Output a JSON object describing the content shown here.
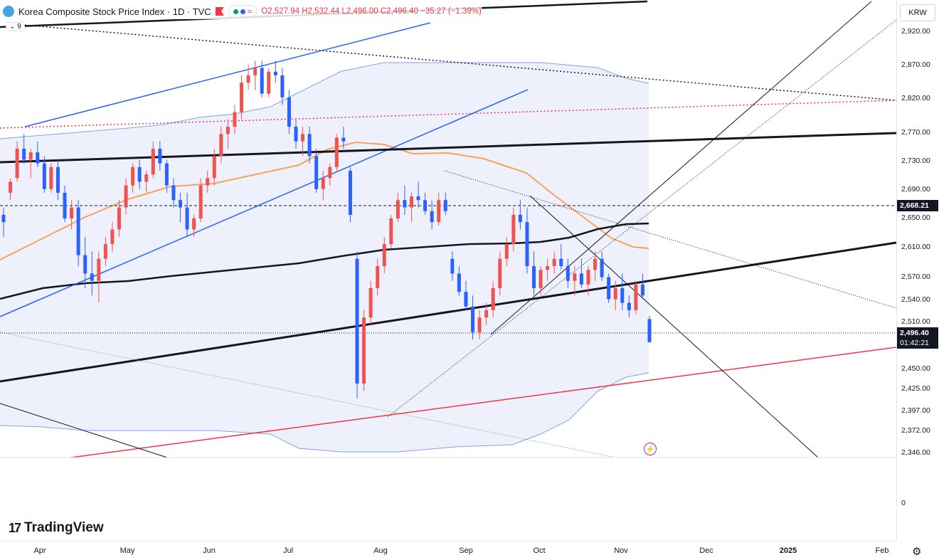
{
  "legend": {
    "title": "Korea Composite Stock Price Index · 1D · TVC",
    "ohlc_o": "O2,527.94",
    "ohlc_h": "H2,532.44",
    "ohlc_l": "L2,496.00",
    "ohlc_c": "C2,496.40",
    "change": "−35.27 (−1.39%)",
    "pill_text": "≈"
  },
  "indicator_toggle": "⌄ 9",
  "currency": "KRW",
  "price_tags": {
    "level": "2,668.21",
    "last": "2,496.40",
    "countdown": "01:42:21"
  },
  "brand": {
    "mark": "17",
    "name": "TradingView"
  },
  "icons": {
    "flash": "flash-icon",
    "settings": "gear-icon",
    "logo": "globe-icon"
  },
  "colors": {
    "up": "#ef5350",
    "down": "#2962ff",
    "ma_orange": "#f7a35c",
    "band": "#7ea6e0"
  },
  "chart_data": {
    "type": "candlestick",
    "y_tick_labels": [
      "2,920.00",
      "2,870.00",
      "2,820.00",
      "2,770.00",
      "2,730.00",
      "2,690.00",
      "2,650.00",
      "2,610.00",
      "2,570.00",
      "2,540.00",
      "2,510.00",
      "2,450.00",
      "2,425.00",
      "2,397.00",
      "2,372.00",
      "2,346.00"
    ],
    "lower_pane_tick": "0",
    "x_tick_labels": [
      "Apr",
      "May",
      "Jun",
      "Jul",
      "Aug",
      "Sep",
      "Oct",
      "Nov",
      "Dec",
      "2025",
      "Feb"
    ],
    "last_price": 2496.4,
    "horizontal_level": 2668.21,
    "candles": [
      [
        2670,
        2680,
        2640,
        2660
      ],
      [
        2700,
        2720,
        2690,
        2715
      ],
      [
        2720,
        2770,
        2715,
        2760
      ],
      [
        2760,
        2780,
        2740,
        2745
      ],
      [
        2745,
        2760,
        2720,
        2755
      ],
      [
        2755,
        2770,
        2735,
        2740
      ],
      [
        2740,
        2750,
        2700,
        2705
      ],
      [
        2705,
        2740,
        2700,
        2735
      ],
      [
        2735,
        2745,
        2690,
        2700
      ],
      [
        2700,
        2710,
        2660,
        2665
      ],
      [
        2665,
        2690,
        2650,
        2680
      ],
      [
        2680,
        2690,
        2600,
        2615
      ],
      [
        2615,
        2640,
        2570,
        2590
      ],
      [
        2590,
        2620,
        2560,
        2580
      ],
      [
        2580,
        2620,
        2550,
        2610
      ],
      [
        2610,
        2640,
        2600,
        2630
      ],
      [
        2630,
        2660,
        2620,
        2650
      ],
      [
        2650,
        2690,
        2640,
        2680
      ],
      [
        2680,
        2720,
        2670,
        2710
      ],
      [
        2710,
        2740,
        2700,
        2735
      ],
      [
        2735,
        2745,
        2705,
        2715
      ],
      [
        2715,
        2730,
        2700,
        2725
      ],
      [
        2725,
        2770,
        2720,
        2760
      ],
      [
        2760,
        2770,
        2730,
        2740
      ],
      [
        2740,
        2745,
        2700,
        2710
      ],
      [
        2710,
        2720,
        2680,
        2690
      ],
      [
        2690,
        2700,
        2660,
        2680
      ],
      [
        2680,
        2700,
        2640,
        2650
      ],
      [
        2650,
        2670,
        2640,
        2665
      ],
      [
        2665,
        2720,
        2660,
        2710
      ],
      [
        2710,
        2730,
        2700,
        2720
      ],
      [
        2720,
        2760,
        2710,
        2750
      ],
      [
        2750,
        2790,
        2740,
        2780
      ],
      [
        2780,
        2800,
        2760,
        2790
      ],
      [
        2790,
        2820,
        2780,
        2810
      ],
      [
        2810,
        2860,
        2800,
        2850
      ],
      [
        2850,
        2875,
        2840,
        2860
      ],
      [
        2860,
        2880,
        2840,
        2870
      ],
      [
        2870,
        2880,
        2830,
        2835
      ],
      [
        2835,
        2870,
        2830,
        2865
      ],
      [
        2865,
        2880,
        2850,
        2860
      ],
      [
        2860,
        2870,
        2820,
        2830
      ],
      [
        2830,
        2840,
        2780,
        2790
      ],
      [
        2790,
        2800,
        2760,
        2770
      ],
      [
        2770,
        2790,
        2750,
        2780
      ],
      [
        2780,
        2790,
        2740,
        2750
      ],
      [
        2750,
        2760,
        2700,
        2705
      ],
      [
        2705,
        2730,
        2690,
        2720
      ],
      [
        2720,
        2740,
        2710,
        2735
      ],
      [
        2735,
        2780,
        2730,
        2775
      ],
      [
        2775,
        2790,
        2760,
        2770
      ],
      [
        2730,
        2735,
        2660,
        2670
      ],
      [
        2610,
        2620,
        2420,
        2440
      ],
      [
        2440,
        2540,
        2430,
        2530
      ],
      [
        2530,
        2580,
        2520,
        2570
      ],
      [
        2570,
        2610,
        2560,
        2600
      ],
      [
        2600,
        2640,
        2590,
        2630
      ],
      [
        2630,
        2670,
        2625,
        2665
      ],
      [
        2665,
        2700,
        2660,
        2690
      ],
      [
        2690,
        2710,
        2670,
        2680
      ],
      [
        2680,
        2700,
        2660,
        2695
      ],
      [
        2695,
        2715,
        2680,
        2690
      ],
      [
        2690,
        2700,
        2670,
        2675
      ],
      [
        2675,
        2690,
        2650,
        2660
      ],
      [
        2660,
        2700,
        2655,
        2690
      ],
      [
        2690,
        2700,
        2670,
        2675
      ],
      [
        2610,
        2620,
        2580,
        2590
      ],
      [
        2590,
        2600,
        2560,
        2565
      ],
      [
        2565,
        2580,
        2540,
        2545
      ],
      [
        2545,
        2560,
        2500,
        2510
      ],
      [
        2510,
        2540,
        2500,
        2530
      ],
      [
        2530,
        2550,
        2520,
        2540
      ],
      [
        2540,
        2580,
        2530,
        2570
      ],
      [
        2570,
        2620,
        2560,
        2610
      ],
      [
        2610,
        2640,
        2600,
        2630
      ],
      [
        2630,
        2680,
        2620,
        2670
      ],
      [
        2670,
        2690,
        2650,
        2660
      ],
      [
        2660,
        2680,
        2590,
        2600
      ],
      [
        2600,
        2620,
        2560,
        2570
      ],
      [
        2570,
        2600,
        2560,
        2595
      ],
      [
        2595,
        2610,
        2580,
        2600
      ],
      [
        2600,
        2620,
        2590,
        2610
      ],
      [
        2610,
        2630,
        2595,
        2600
      ],
      [
        2600,
        2610,
        2570,
        2580
      ],
      [
        2580,
        2600,
        2560,
        2590
      ],
      [
        2590,
        2610,
        2570,
        2575
      ],
      [
        2575,
        2600,
        2560,
        2595
      ],
      [
        2595,
        2620,
        2580,
        2610
      ],
      [
        2610,
        2620,
        2580,
        2585
      ],
      [
        2585,
        2590,
        2550,
        2555
      ],
      [
        2555,
        2580,
        2540,
        2570
      ],
      [
        2570,
        2590,
        2540,
        2550
      ],
      [
        2550,
        2560,
        2530,
        2540
      ],
      [
        2540,
        2580,
        2535,
        2575
      ],
      [
        2575,
        2590,
        2555,
        2560
      ],
      [
        2527.94,
        2532.44,
        2496,
        2496.4
      ]
    ],
    "ylim": [
      2330,
      2935
    ]
  }
}
